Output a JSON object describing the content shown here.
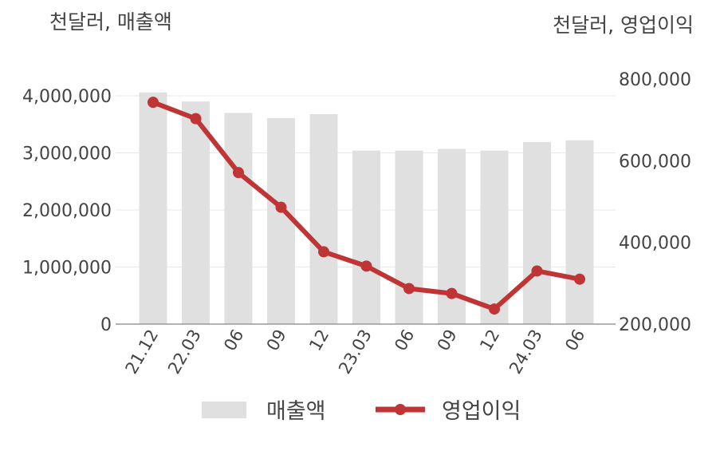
{
  "chart_data": {
    "type": "bar+line",
    "left_axis_unit": "천달러, 매출액",
    "right_axis_unit": "천달러, 영업이익",
    "categories": [
      "21.12",
      "22.03",
      "06",
      "09",
      "12",
      "23.03",
      "06",
      "09",
      "12",
      "24.03",
      "06"
    ],
    "series": [
      {
        "name": "매출액",
        "type": "bar",
        "axis": "left",
        "color": "#e0e0e0",
        "values": [
          4060000,
          3900000,
          3700000,
          3610000,
          3680000,
          3040000,
          3040000,
          3070000,
          3040000,
          3190000,
          3220000
        ]
      },
      {
        "name": "영업이익",
        "type": "line",
        "axis": "right",
        "color": "#bf3535",
        "values": [
          743000,
          703000,
          571000,
          486000,
          377000,
          342000,
          287000,
          275000,
          237000,
          330000,
          310000
        ]
      }
    ],
    "left_axis": {
      "range": [
        0,
        4000000
      ],
      "ticks": [
        0,
        1000000,
        2000000,
        3000000,
        4000000
      ],
      "tick_labels": [
        "0",
        "1,000,000",
        "2,000,000",
        "3,000,000",
        "4,000,000"
      ]
    },
    "right_axis": {
      "range": [
        200000,
        800000
      ],
      "ticks": [
        200000,
        400000,
        600000,
        800000
      ],
      "tick_labels": [
        "200,000",
        "400,000",
        "600,000",
        "800,000"
      ]
    },
    "grid": true,
    "legend_position": "bottom"
  }
}
